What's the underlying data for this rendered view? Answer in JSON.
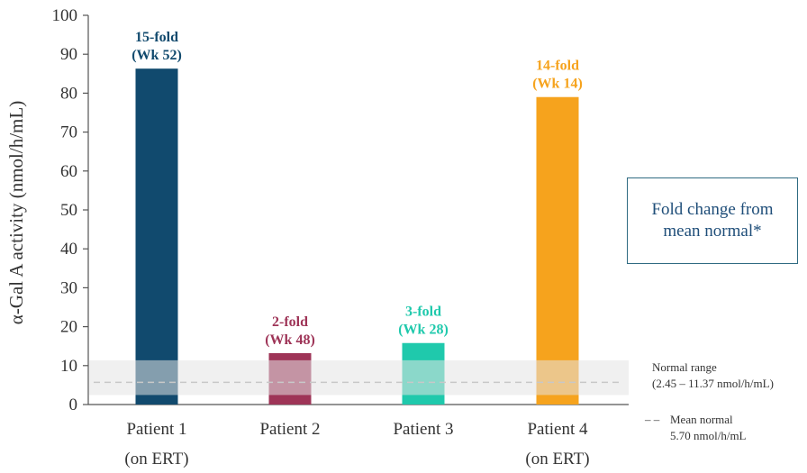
{
  "chart_data": {
    "type": "bar",
    "ylabel": "α-Gal A activity (nmol/h/mL)",
    "ylim": [
      0,
      100
    ],
    "yticks": [
      0,
      10,
      20,
      30,
      40,
      50,
      60,
      70,
      80,
      90,
      100
    ],
    "categories": [
      {
        "line1": "Patient 1",
        "line2": "(on ERT)"
      },
      {
        "line1": "Patient 2",
        "line2": ""
      },
      {
        "line1": "Patient 3",
        "line2": ""
      },
      {
        "line1": "Patient 4",
        "line2": "(on ERT)"
      }
    ],
    "values": [
      86.3,
      13.2,
      15.8,
      79.0
    ],
    "colors": [
      "#114a6e",
      "#9e3457",
      "#1fc9ac",
      "#f6a31d"
    ],
    "bar_labels": [
      {
        "line1": "15-fold",
        "line2": "(Wk 52)"
      },
      {
        "line1": "2-fold",
        "line2": "(Wk 48)"
      },
      {
        "line1": "3-fold",
        "line2": "(Wk 28)"
      },
      {
        "line1": "14-fold",
        "line2": "(Wk 14)"
      }
    ],
    "normal_range": {
      "low": 2.45,
      "high": 11.37,
      "label": "Normal range",
      "text": "(2.45 – 11.37 nmol/h/mL)"
    },
    "mean_normal": {
      "value": 5.7,
      "label": "Mean normal",
      "text": "5.70 nmol/h/mL"
    },
    "legend_dash": "– –",
    "annotation_box": "Fold change from mean normal*"
  }
}
